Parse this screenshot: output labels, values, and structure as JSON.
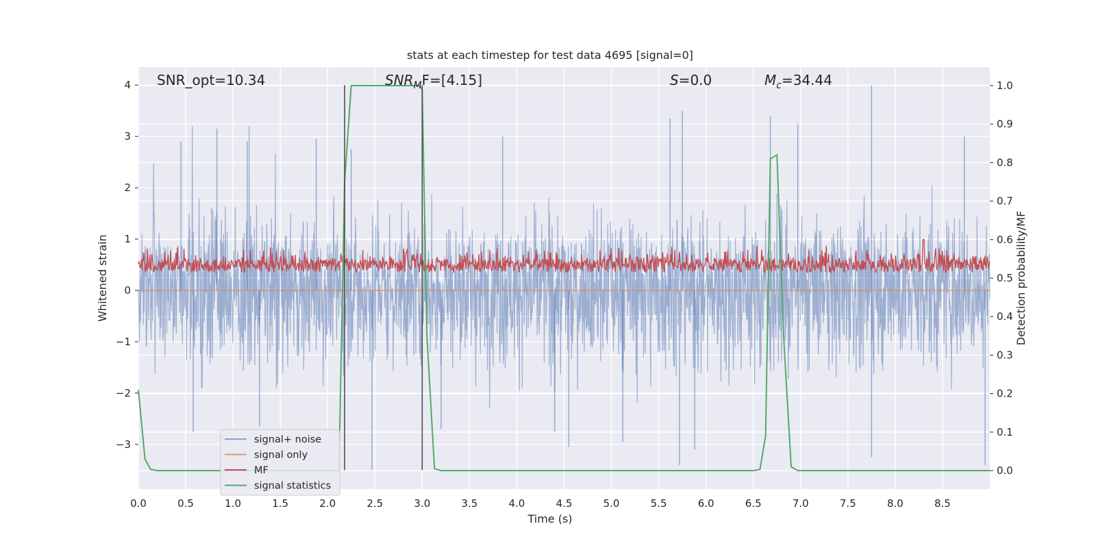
{
  "chart_data": {
    "type": "line",
    "title": "stats at each timestep for test data 4695 [signal=0]",
    "xlabel": "Time (s)",
    "ylabel_left": "Whitened strain",
    "ylabel_right": "Detection probability/MF",
    "xlim": [
      0.0,
      9.0
    ],
    "ylim_left": [
      -3.87,
      4.35
    ],
    "ylim_right": [
      -0.048,
      1.048
    ],
    "x_ticks": [
      "0.0",
      "0.5",
      "1.0",
      "1.5",
      "2.0",
      "2.5",
      "3.0",
      "3.5",
      "4.0",
      "4.5",
      "5.0",
      "5.5",
      "6.0",
      "6.5",
      "7.0",
      "7.5",
      "8.0",
      "8.5"
    ],
    "x_tick_values": [
      0.0,
      0.5,
      1.0,
      1.5,
      2.0,
      2.5,
      3.0,
      3.5,
      4.0,
      4.5,
      5.0,
      5.5,
      6.0,
      6.5,
      7.0,
      7.5,
      8.0,
      8.5
    ],
    "y_ticks_left": [
      "4",
      "3",
      "2",
      "1",
      "0",
      "−1",
      "−2",
      "−3"
    ],
    "y_tick_values_left": [
      4,
      3,
      2,
      1,
      0,
      -1,
      -2,
      -3
    ],
    "y_ticks_right": [
      "1.0",
      "0.9",
      "0.8",
      "0.7",
      "0.6",
      "0.5",
      "0.4",
      "0.3",
      "0.2",
      "0.1",
      "0.0"
    ],
    "y_tick_values_right": [
      1.0,
      0.9,
      0.8,
      0.7,
      0.6,
      0.5,
      0.4,
      0.3,
      0.2,
      0.1,
      0.0
    ],
    "grid": true,
    "legend_position": "lower-left",
    "annotations": {
      "snr_opt": "SNR_opt=10.34",
      "snr_mf_sym": "SNR",
      "snr_mf_sub": "M",
      "snr_mf_rest": "F=[4.15]",
      "s_sym": "S",
      "s_rest": "=0.0",
      "mc_sym": "M",
      "mc_sub": "c",
      "mc_rest": "=34.44"
    },
    "vertical_lines_x": [
      2.18,
      3.0
    ],
    "vertical_lines_range_left": [
      -3.5,
      4.0
    ],
    "series": [
      {
        "name": "signal+ noise",
        "color": "#4c72b0",
        "axis": "left",
        "description_level": "noise band approx ±2 with spikes to ±3.5",
        "spikes": [
          {
            "x": 0.83,
            "y": 3.15
          },
          {
            "x": 0.45,
            "y": 2.9
          },
          {
            "x": 1.15,
            "y": 2.9
          },
          {
            "x": 1.88,
            "y": 2.95
          },
          {
            "x": 2.25,
            "y": 2.75
          },
          {
            "x": 3.85,
            "y": 3.0
          },
          {
            "x": 5.75,
            "y": 3.5
          },
          {
            "x": 5.62,
            "y": 3.35
          },
          {
            "x": 6.68,
            "y": 3.4
          },
          {
            "x": 6.97,
            "y": 3.25
          },
          {
            "x": 7.75,
            "y": 4.0
          },
          {
            "x": 8.73,
            "y": 3.0
          },
          {
            "x": 0.58,
            "y": -2.75
          },
          {
            "x": 2.47,
            "y": -3.5
          },
          {
            "x": 4.55,
            "y": -3.05
          },
          {
            "x": 5.12,
            "y": -2.95
          },
          {
            "x": 5.72,
            "y": -3.4
          },
          {
            "x": 5.88,
            "y": -3.1
          },
          {
            "x": 7.75,
            "y": -3.25
          },
          {
            "x": 8.95,
            "y": -3.4
          },
          {
            "x": 1.28,
            "y": -2.65
          },
          {
            "x": 3.2,
            "y": -2.7
          },
          {
            "x": 4.4,
            "y": -2.75
          }
        ]
      },
      {
        "name": "signal only",
        "color": "#dd8452",
        "axis": "left",
        "x": [
          0,
          9
        ],
        "y": [
          0,
          0
        ]
      },
      {
        "name": "MF",
        "color": "#c44e52",
        "axis": "right",
        "description_level": "fluctuates between 0.5 and 0.58 on right axis, peak ~0.6 near 8.3"
      },
      {
        "name": "signal statistics",
        "color": "#55a868",
        "axis": "right",
        "x": [
          0.0,
          0.07,
          0.13,
          0.2,
          2.12,
          2.18,
          2.25,
          2.9,
          2.97,
          3.0,
          3.05,
          3.13,
          3.2,
          6.5,
          6.57,
          6.63,
          6.68,
          6.75,
          6.82,
          6.9,
          6.97,
          9.0
        ],
        "y": [
          0.21,
          0.03,
          0.003,
          0.0,
          0.0,
          0.75,
          1.0,
          1.0,
          1.0,
          0.99,
          0.35,
          0.005,
          0.0,
          0.0,
          0.003,
          0.09,
          0.81,
          0.82,
          0.35,
          0.01,
          0.0,
          0.0
        ]
      }
    ]
  }
}
